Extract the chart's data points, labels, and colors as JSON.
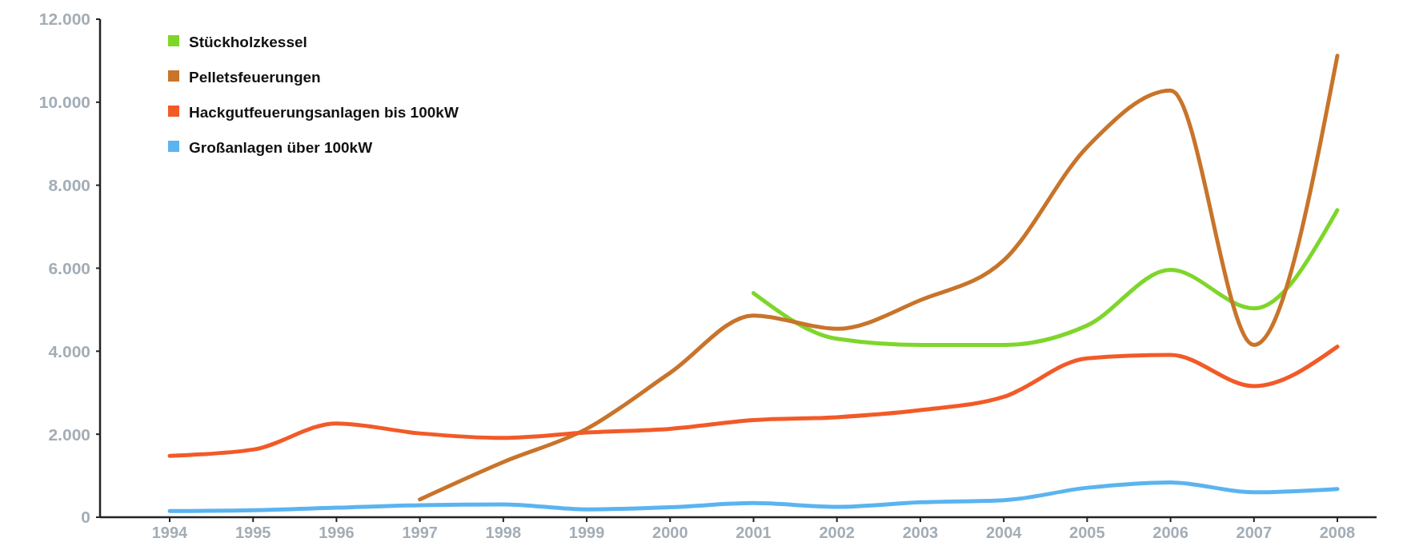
{
  "chart_data": {
    "type": "line",
    "categories": [
      "1994",
      "1995",
      "1996",
      "1997",
      "1998",
      "1999",
      "2000",
      "2001",
      "2002",
      "2003",
      "2004",
      "2005",
      "2006",
      "2007",
      "2008"
    ],
    "ylim": [
      0,
      12000
    ],
    "yticks": [
      {
        "value": 0,
        "label": "0"
      },
      {
        "value": 2000,
        "label": "2.000"
      },
      {
        "value": 4000,
        "label": "4.000"
      },
      {
        "value": 6000,
        "label": "6.000"
      },
      {
        "value": 8000,
        "label": "8.000"
      },
      {
        "value": 10000,
        "label": "10.000"
      },
      {
        "value": 12000,
        "label": "12.000"
      }
    ],
    "legend": "top left",
    "grid": false,
    "marker": "none",
    "line_style": "solid",
    "series": [
      {
        "name": "Stückholzkessel",
        "color": "#7ed62a",
        "values": [
          null,
          null,
          null,
          null,
          null,
          null,
          null,
          5400,
          4300,
          4150,
          4150,
          4620,
          5960,
          5030,
          7400
        ]
      },
      {
        "name": "Pelletsfeuerungen",
        "color": "#c8742a",
        "values": [
          null,
          null,
          null,
          430,
          1330,
          2130,
          3480,
          4860,
          4540,
          5230,
          6190,
          8920,
          10280,
          4150,
          11120
        ]
      },
      {
        "name": "Hackgutfeuerungsanlagen bis 100kW",
        "color": "#f25a28",
        "values": [
          1480,
          1630,
          2260,
          2020,
          1910,
          2040,
          2130,
          2340,
          2410,
          2580,
          2900,
          3830,
          3910,
          3160,
          4110
        ]
      },
      {
        "name": "Großanlagen über 100kW",
        "color": "#5ab4f0",
        "values": [
          150,
          170,
          230,
          290,
          310,
          190,
          240,
          340,
          250,
          360,
          410,
          710,
          840,
          600,
          680
        ]
      }
    ]
  }
}
